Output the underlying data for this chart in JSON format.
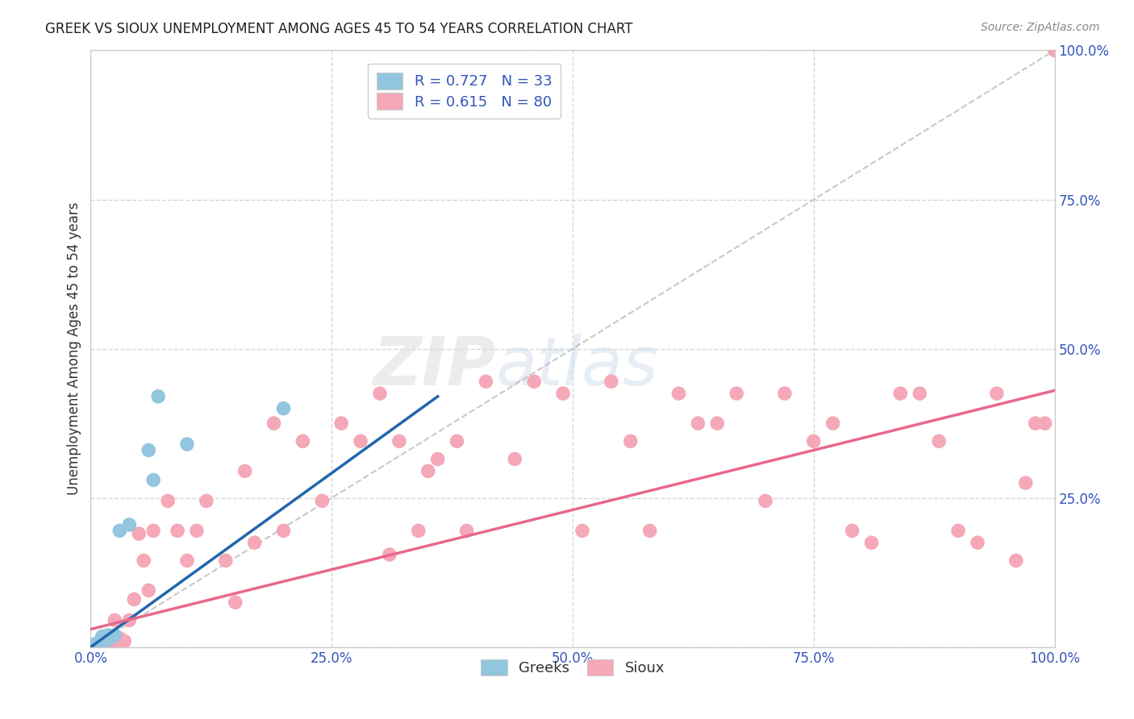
{
  "title": "GREEK VS SIOUX UNEMPLOYMENT AMONG AGES 45 TO 54 YEARS CORRELATION CHART",
  "source": "Source: ZipAtlas.com",
  "ylabel": "Unemployment Among Ages 45 to 54 years",
  "xlim": [
    0,
    1.0
  ],
  "ylim": [
    0,
    1.0
  ],
  "xticks": [
    0.0,
    0.25,
    0.5,
    0.75,
    1.0
  ],
  "yticks": [
    0.0,
    0.25,
    0.5,
    0.75,
    1.0
  ],
  "xticklabels": [
    "0.0%",
    "25.0%",
    "50.0%",
    "75.0%",
    "100.0%"
  ],
  "yticklabels": [
    "",
    "25.0%",
    "50.0%",
    "75.0%",
    "100.0%"
  ],
  "watermark_zip": "ZIP",
  "watermark_atlas": "atlas",
  "legend_label1": "R = 0.727   N = 33",
  "legend_label2": "R = 0.615   N = 80",
  "legend_bottom_label1": "Greeks",
  "legend_bottom_label2": "Sioux",
  "color_greek": "#92C5DE",
  "color_sioux": "#F4A8B8",
  "color_greek_line": "#2166AC",
  "color_sioux_line": "#E8688A",
  "color_diag": "#BBBBBB",
  "greek_x": [
    0.001,
    0.002,
    0.002,
    0.003,
    0.003,
    0.003,
    0.004,
    0.004,
    0.005,
    0.005,
    0.005,
    0.006,
    0.006,
    0.007,
    0.007,
    0.008,
    0.009,
    0.01,
    0.01,
    0.012,
    0.013,
    0.015,
    0.015,
    0.018,
    0.02,
    0.025,
    0.03,
    0.04,
    0.06,
    0.065,
    0.07,
    0.1,
    0.2
  ],
  "greek_y": [
    0.0,
    0.001,
    0.002,
    0.001,
    0.002,
    0.004,
    0.002,
    0.003,
    0.001,
    0.002,
    0.005,
    0.003,
    0.006,
    0.002,
    0.004,
    0.003,
    0.005,
    0.004,
    0.01,
    0.018,
    0.008,
    0.01,
    0.015,
    0.02,
    0.015,
    0.02,
    0.195,
    0.205,
    0.33,
    0.28,
    0.42,
    0.34,
    0.4
  ],
  "sioux_x": [
    0.001,
    0.002,
    0.003,
    0.004,
    0.005,
    0.005,
    0.006,
    0.007,
    0.008,
    0.009,
    0.01,
    0.011,
    0.012,
    0.013,
    0.015,
    0.015,
    0.017,
    0.02,
    0.025,
    0.028,
    0.03,
    0.035,
    0.04,
    0.045,
    0.05,
    0.055,
    0.06,
    0.065,
    0.08,
    0.09,
    0.1,
    0.11,
    0.12,
    0.14,
    0.15,
    0.16,
    0.17,
    0.19,
    0.2,
    0.22,
    0.24,
    0.26,
    0.28,
    0.31,
    0.34,
    0.36,
    0.39,
    0.41,
    0.44,
    0.46,
    0.49,
    0.51,
    0.54,
    0.56,
    0.58,
    0.61,
    0.63,
    0.65,
    0.67,
    0.7,
    0.72,
    0.75,
    0.77,
    0.79,
    0.81,
    0.84,
    0.86,
    0.88,
    0.9,
    0.92,
    0.94,
    0.96,
    0.97,
    0.98,
    0.99,
    1.0,
    0.3,
    0.32,
    0.35,
    0.38
  ],
  "sioux_y": [
    0.002,
    0.003,
    0.001,
    0.002,
    0.001,
    0.004,
    0.002,
    0.003,
    0.001,
    0.002,
    0.004,
    0.003,
    0.002,
    0.005,
    0.003,
    0.008,
    0.005,
    0.007,
    0.045,
    0.01,
    0.015,
    0.01,
    0.045,
    0.08,
    0.19,
    0.145,
    0.095,
    0.195,
    0.245,
    0.195,
    0.145,
    0.195,
    0.245,
    0.145,
    0.075,
    0.295,
    0.175,
    0.375,
    0.195,
    0.345,
    0.245,
    0.375,
    0.345,
    0.155,
    0.195,
    0.315,
    0.195,
    0.445,
    0.315,
    0.445,
    0.425,
    0.195,
    0.445,
    0.345,
    0.195,
    0.425,
    0.375,
    0.375,
    0.425,
    0.245,
    0.425,
    0.345,
    0.375,
    0.195,
    0.175,
    0.425,
    0.425,
    0.345,
    0.195,
    0.175,
    0.425,
    0.145,
    0.275,
    0.375,
    0.375,
    1.0,
    0.425,
    0.345,
    0.295,
    0.345
  ],
  "greek_line_x": [
    0.0,
    0.36
  ],
  "greek_line_y": [
    0.0,
    0.42
  ],
  "sioux_line_x": [
    0.0,
    1.0
  ],
  "sioux_line_y": [
    0.03,
    0.43
  ]
}
